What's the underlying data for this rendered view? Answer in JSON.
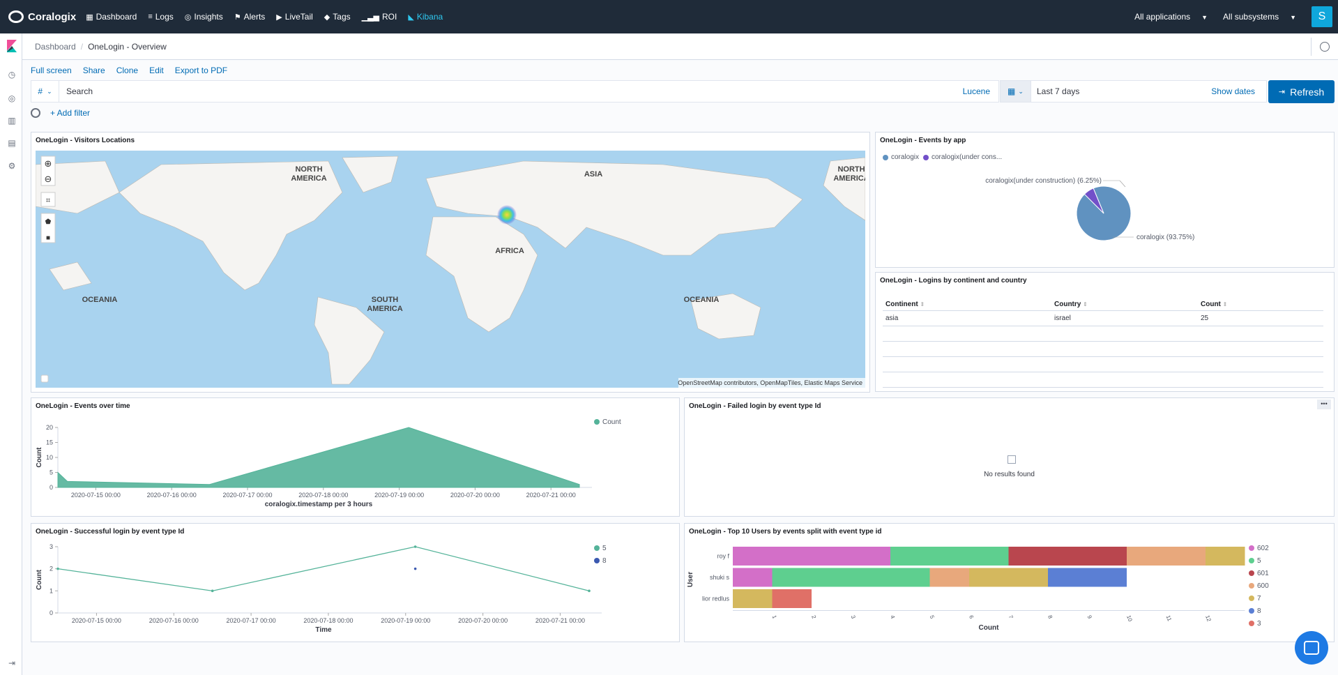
{
  "colors": {
    "topbar_bg": "#1f2b39",
    "accent": "#006bb4",
    "kibana": "#2fc8ef",
    "teal": "#54b399",
    "pie_primary": "#6092c0",
    "pie_secondary": "#7250c9"
  },
  "topnav": {
    "brand": "Coralogix",
    "items": [
      {
        "label": "Dashboard",
        "icon": "grid-icon"
      },
      {
        "label": "Logs",
        "icon": "database-icon"
      },
      {
        "label": "Insights",
        "icon": "target-icon"
      },
      {
        "label": "Alerts",
        "icon": "flag-icon"
      },
      {
        "label": "LiveTail",
        "icon": "play-icon"
      },
      {
        "label": "Tags",
        "icon": "tag-icon"
      },
      {
        "label": "ROI",
        "icon": "bars-icon"
      },
      {
        "label": "Kibana",
        "icon": "kibana-icon"
      }
    ],
    "applications": "All applications",
    "subsystems": "All subsystems",
    "avatar": "S"
  },
  "breadcrumb": {
    "parent": "Dashboard",
    "current": "OneLogin - Overview"
  },
  "menu": {
    "full_screen": "Full screen",
    "share": "Share",
    "clone": "Clone",
    "edit": "Edit",
    "export": "Export to PDF"
  },
  "query": {
    "prefix": "#",
    "placeholder": "Search",
    "language": "Lucene"
  },
  "time": {
    "range": "Last 7 days",
    "show_dates": "Show dates",
    "refresh": "Refresh"
  },
  "filter": {
    "add": "+ Add filter"
  },
  "panels": {
    "map": {
      "title": "OneLogin - Visitors Locations",
      "labels": {
        "north_america": "NORTH",
        "north_america2": "AMERICA",
        "asia": "ASIA",
        "africa": "AFRICA",
        "oceania": "OCEANIA",
        "south_america": "SOUTH",
        "south_america2": "AMERICA",
        "north_america_r": "NORTH",
        "north_america_r2": "AMERICA",
        "oceania_r": "OCEANIA"
      },
      "attribution": "OpenStreetMap contributors, OpenMapTiles, Elastic Maps Service"
    },
    "events_by_app": {
      "title": "OneLogin - Events by app",
      "legend": [
        "coralogix",
        "coralogix(under cons..."
      ],
      "label_small": "coralogix(under construction) (6.25%)",
      "label_big": "coralogix (93.75%)"
    },
    "logins_table": {
      "title": "OneLogin - Logins by continent and country",
      "headers": [
        "Continent",
        "Country",
        "Count"
      ],
      "rows": [
        [
          "asia",
          "israel",
          "25"
        ]
      ]
    },
    "events_over_time": {
      "title": "OneLogin - Events over time"
    },
    "failed_login": {
      "title": "OneLogin - Failed login by event type Id",
      "empty": "No results found"
    },
    "successful_login": {
      "title": "OneLogin - Successful login by event type Id"
    },
    "top_users": {
      "title": "OneLogin - Top 10 Users by events split with event type id"
    }
  },
  "chart_data": [
    {
      "type": "pie",
      "title": "OneLogin - Events by app",
      "categories": [
        "coralogix",
        "coralogix(under construction)"
      ],
      "values": [
        93.75,
        6.25
      ],
      "legend": "top-left"
    },
    {
      "type": "area",
      "title": "OneLogin - Events over time",
      "xlabel": "coralogix.timestamp per 3 hours",
      "ylabel": "Count",
      "x_ticks": [
        "2020-07-15 00:00",
        "2020-07-16 00:00",
        "2020-07-17 00:00",
        "2020-07-18 00:00",
        "2020-07-19 00:00",
        "2020-07-20 00:00",
        "2020-07-21 00:00"
      ],
      "y_ticks": [
        "0",
        "5",
        "10",
        "15",
        "20"
      ],
      "ylim": [
        0,
        20
      ],
      "series": [
        {
          "name": "Count",
          "points": [
            [
              "2020-07-14 12:00",
              5
            ],
            [
              "2020-07-14 15:00",
              2
            ],
            [
              "2020-07-16 12:00",
              1
            ],
            [
              "2020-07-19 03:00",
              20
            ],
            [
              "2020-07-21 09:00",
              1
            ]
          ]
        }
      ],
      "legend": "top-right"
    },
    {
      "type": "line",
      "title": "OneLogin - Successful login by event type Id",
      "xlabel": "Time",
      "ylabel": "Count",
      "x_ticks": [
        "2020-07-15 00:00",
        "2020-07-16 00:00",
        "2020-07-17 00:00",
        "2020-07-18 00:00",
        "2020-07-19 00:00",
        "2020-07-20 00:00",
        "2020-07-21 00:00"
      ],
      "y_ticks": [
        "0",
        "1",
        "2",
        "3"
      ],
      "ylim": [
        0,
        3
      ],
      "series": [
        {
          "name": "5",
          "color": "#54b399",
          "points": [
            [
              "2020-07-14 12:00",
              2
            ],
            [
              "2020-07-16 12:00",
              1
            ],
            [
              "2020-07-19 03:00",
              3
            ],
            [
              "2020-07-21 09:00",
              1
            ]
          ]
        },
        {
          "name": "8",
          "color": "#3b59b0",
          "points": [
            [
              "2020-07-19 03:00",
              2
            ]
          ]
        }
      ],
      "legend": "top-right"
    },
    {
      "type": "bar",
      "orientation": "horizontal-stacked",
      "title": "OneLogin - Top 10 Users by events split with event type id",
      "xlabel": "Count",
      "ylabel": "User",
      "categories": [
        "roy f",
        "shuki s",
        "lior redlus"
      ],
      "x_ticks": [
        "1",
        "2",
        "3",
        "4",
        "5",
        "6",
        "7",
        "8",
        "9",
        "10",
        "11",
        "12"
      ],
      "xlim": [
        0,
        13
      ],
      "series": [
        {
          "name": "602",
          "color": "#d36fc8",
          "values": [
            4,
            1,
            0
          ]
        },
        {
          "name": "5",
          "color": "#5ecf8f",
          "values": [
            3,
            4,
            0
          ]
        },
        {
          "name": "601",
          "color": "#b9464e",
          "values": [
            3,
            0,
            0
          ]
        },
        {
          "name": "600",
          "color": "#e8a87c",
          "values": [
            2,
            1,
            0
          ]
        },
        {
          "name": "7",
          "color": "#d4b85e",
          "values": [
            1,
            2,
            1
          ]
        },
        {
          "name": "8",
          "color": "#5b7fd4",
          "values": [
            0,
            2,
            0
          ]
        },
        {
          "name": "3",
          "color": "#e07067",
          "values": [
            0,
            0,
            1
          ]
        }
      ],
      "legend": "right"
    }
  ]
}
